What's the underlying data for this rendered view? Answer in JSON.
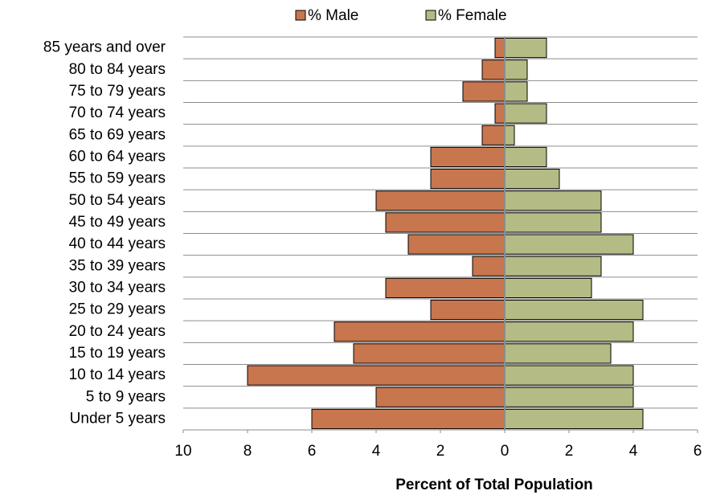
{
  "chart_data": {
    "type": "pyramid",
    "x_label": "Percent of Total Population",
    "categories": [
      "Under 5 years",
      "5 to 9 years",
      "10 to 14 years",
      "15 to 19 years",
      "20 to 24 years",
      "25 to 29 years",
      "30 to 34 years",
      "35 to 39 years",
      "40 to 44 years",
      "45 to 49 years",
      "50 to 54 years",
      "55 to 59 years",
      "60 to 64 years",
      "65 to 69 years",
      "70 to 74 years",
      "75 to 79 years",
      "80 to 84 years",
      "85 years and over"
    ],
    "series": [
      {
        "name": "% Male",
        "color": "#c8764e",
        "values": [
          -6.0,
          -4.0,
          -8.0,
          -4.7,
          -5.3,
          -2.3,
          -3.7,
          -1.0,
          -3.0,
          -3.7,
          -4.0,
          -2.3,
          -2.3,
          -0.7,
          -0.3,
          -1.3,
          -0.7,
          -0.3
        ]
      },
      {
        "name": "% Female",
        "color": "#b5bb85",
        "values": [
          4.3,
          4.0,
          4.0,
          3.3,
          4.0,
          4.3,
          2.7,
          3.0,
          4.0,
          3.0,
          3.0,
          1.7,
          1.3,
          0.3,
          1.3,
          0.7,
          0.7,
          1.3
        ]
      }
    ],
    "xlim": [
      -10,
      6
    ],
    "xticks": [
      {
        "value": -10,
        "label": "10"
      },
      {
        "value": -8,
        "label": "8"
      },
      {
        "value": -6,
        "label": "6"
      },
      {
        "value": -4,
        "label": "4"
      },
      {
        "value": -2,
        "label": "2"
      },
      0,
      2,
      4,
      6
    ],
    "legend": "top",
    "grid": true
  }
}
